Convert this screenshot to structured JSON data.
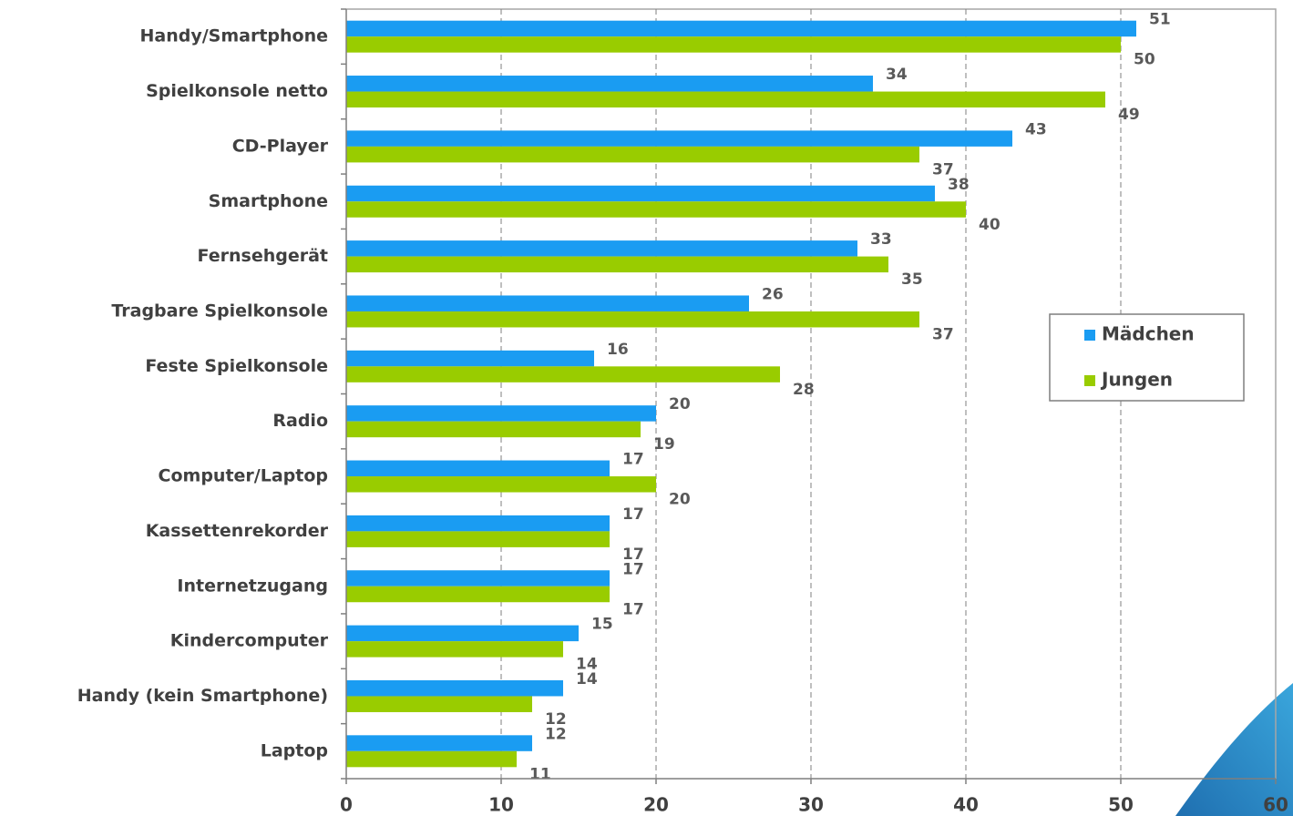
{
  "chart_data": {
    "type": "hbar",
    "categories": [
      "Handy/Smartphone",
      "Spielkonsole netto",
      "CD-Player",
      "Smartphone",
      "Fernsehgerät",
      "Tragbare Spielkonsole",
      "Feste Spielkonsole",
      "Radio",
      "Computer/Laptop",
      "Kassettenrekorder",
      "Internetzugang",
      "Kindercomputer",
      "Handy (kein Smartphone)",
      "Laptop"
    ],
    "series": [
      {
        "name": "Mädchen",
        "color": "#1a9cf2",
        "values": [
          51,
          34,
          43,
          38,
          33,
          26,
          16,
          20,
          17,
          17,
          17,
          15,
          14,
          12
        ]
      },
      {
        "name": "Jungen",
        "color": "#99cc00",
        "values": [
          50,
          49,
          37,
          40,
          35,
          37,
          28,
          19,
          20,
          17,
          17,
          14,
          12,
          11
        ]
      }
    ],
    "xlim": [
      0,
      60
    ],
    "xticks": [
      0,
      10,
      20,
      30,
      40,
      50,
      60
    ],
    "grid": true,
    "legend": "right"
  }
}
